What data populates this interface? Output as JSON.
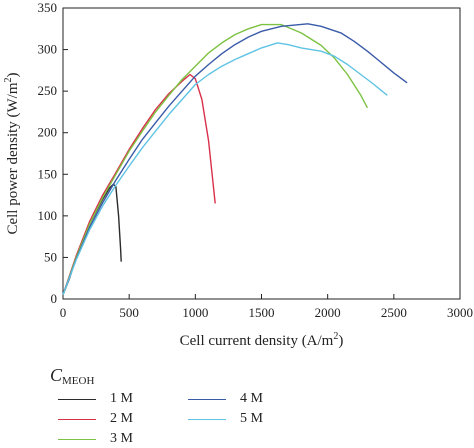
{
  "chart_data": {
    "type": "line",
    "xlabel": "Cell current density (A/m",
    "xlabel_sup": "2",
    "xlabel_end": ")",
    "ylabel": "Cell power density (W/m",
    "ylabel_sup": "2",
    "ylabel_end": ")",
    "xlim": [
      0,
      3000
    ],
    "ylim": [
      0,
      350
    ],
    "xticks": [
      "0",
      "500",
      "1000",
      "1500",
      "2000",
      "2500",
      "3000"
    ],
    "yticks": [
      "0",
      "50",
      "100",
      "150",
      "200",
      "250",
      "300",
      "350"
    ],
    "legend_title": "C",
    "legend_title_sub": "MEOH",
    "series": [
      {
        "name": "1 M",
        "color": "#2b2b2b",
        "points": [
          [
            0,
            5
          ],
          [
            50,
            25
          ],
          [
            100,
            50
          ],
          [
            150,
            70
          ],
          [
            200,
            90
          ],
          [
            250,
            105
          ],
          [
            300,
            120
          ],
          [
            350,
            133
          ],
          [
            380,
            138
          ],
          [
            400,
            135
          ],
          [
            420,
            100
          ],
          [
            435,
            60
          ],
          [
            440,
            45
          ]
        ]
      },
      {
        "name": "2 M",
        "color": "#d9304a",
        "points": [
          [
            0,
            5
          ],
          [
            100,
            52
          ],
          [
            200,
            93
          ],
          [
            300,
            125
          ],
          [
            400,
            152
          ],
          [
            500,
            180
          ],
          [
            600,
            205
          ],
          [
            700,
            228
          ],
          [
            800,
            247
          ],
          [
            900,
            262
          ],
          [
            960,
            270
          ],
          [
            1000,
            265
          ],
          [
            1050,
            240
          ],
          [
            1100,
            190
          ],
          [
            1150,
            115
          ]
        ]
      },
      {
        "name": "3 M",
        "color": "#7dc242",
        "points": [
          [
            0,
            5
          ],
          [
            100,
            50
          ],
          [
            200,
            90
          ],
          [
            300,
            122
          ],
          [
            400,
            150
          ],
          [
            500,
            178
          ],
          [
            600,
            202
          ],
          [
            700,
            225
          ],
          [
            800,
            245
          ],
          [
            900,
            264
          ],
          [
            1000,
            280
          ],
          [
            1100,
            296
          ],
          [
            1200,
            308
          ],
          [
            1300,
            318
          ],
          [
            1400,
            325
          ],
          [
            1500,
            330
          ],
          [
            1650,
            330
          ],
          [
            1800,
            320
          ],
          [
            1950,
            305
          ],
          [
            2050,
            290
          ],
          [
            2150,
            270
          ],
          [
            2250,
            245
          ],
          [
            2300,
            230
          ]
        ]
      },
      {
        "name": "4 M",
        "color": "#3a5ba8",
        "points": [
          [
            0,
            5
          ],
          [
            100,
            48
          ],
          [
            200,
            86
          ],
          [
            300,
            116
          ],
          [
            400,
            143
          ],
          [
            500,
            168
          ],
          [
            600,
            192
          ],
          [
            700,
            212
          ],
          [
            800,
            232
          ],
          [
            900,
            250
          ],
          [
            1000,
            268
          ],
          [
            1100,
            282
          ],
          [
            1200,
            295
          ],
          [
            1300,
            306
          ],
          [
            1400,
            315
          ],
          [
            1500,
            322
          ],
          [
            1650,
            328
          ],
          [
            1850,
            331
          ],
          [
            1950,
            328
          ],
          [
            2100,
            320
          ],
          [
            2200,
            310
          ],
          [
            2300,
            298
          ],
          [
            2400,
            285
          ],
          [
            2500,
            272
          ],
          [
            2600,
            260
          ]
        ]
      },
      {
        "name": "5 M",
        "color": "#5fc3e4",
        "points": [
          [
            0,
            5
          ],
          [
            100,
            47
          ],
          [
            200,
            83
          ],
          [
            300,
            112
          ],
          [
            400,
            137
          ],
          [
            500,
            160
          ],
          [
            600,
            182
          ],
          [
            700,
            202
          ],
          [
            800,
            222
          ],
          [
            900,
            240
          ],
          [
            1000,
            258
          ],
          [
            1100,
            270
          ],
          [
            1200,
            280
          ],
          [
            1300,
            288
          ],
          [
            1400,
            295
          ],
          [
            1500,
            302
          ],
          [
            1620,
            308
          ],
          [
            1700,
            306
          ],
          [
            1800,
            302
          ],
          [
            1950,
            298
          ],
          [
            2050,
            292
          ],
          [
            2150,
            282
          ],
          [
            2250,
            270
          ],
          [
            2350,
            258
          ],
          [
            2450,
            245
          ]
        ]
      }
    ],
    "grid": false,
    "legend_placement": "bottom-left"
  }
}
